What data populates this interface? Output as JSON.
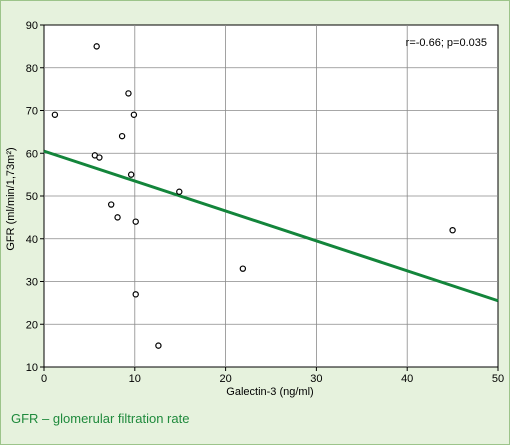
{
  "caption": "GFR – glomerular filtration rate",
  "colors": {
    "background": "#e6f2dd",
    "plot_background": "#ffffff",
    "trend_line": "#13853b",
    "marker": "#000000",
    "caption": "#1f8a3c"
  },
  "chart_data": {
    "type": "scatter",
    "title": "",
    "xlabel": "Galectin-3 (ng/ml)",
    "ylabel": "GFR (ml/min/1,73m²)",
    "xlim": [
      0,
      50
    ],
    "ylim": [
      10,
      90
    ],
    "xticks": [
      0,
      10,
      20,
      30,
      40,
      50
    ],
    "yticks": [
      10,
      20,
      30,
      40,
      50,
      60,
      70,
      80,
      90
    ],
    "grid": true,
    "annotation": "r=-0.66; p=0.035",
    "points": [
      {
        "x": 1.2,
        "y": 69
      },
      {
        "x": 5.6,
        "y": 59.5
      },
      {
        "x": 5.8,
        "y": 85
      },
      {
        "x": 6.1,
        "y": 59
      },
      {
        "x": 7.4,
        "y": 48
      },
      {
        "x": 8.1,
        "y": 45
      },
      {
        "x": 8.6,
        "y": 64
      },
      {
        "x": 9.3,
        "y": 74
      },
      {
        "x": 9.6,
        "y": 55
      },
      {
        "x": 9.9,
        "y": 69
      },
      {
        "x": 10.1,
        "y": 44
      },
      {
        "x": 10.1,
        "y": 27
      },
      {
        "x": 12.6,
        "y": 15
      },
      {
        "x": 14.9,
        "y": 51
      },
      {
        "x": 21.9,
        "y": 33
      },
      {
        "x": 45.0,
        "y": 42
      }
    ],
    "trend_line": {
      "x": [
        0,
        50
      ],
      "y": [
        60.5,
        25.5
      ]
    }
  }
}
